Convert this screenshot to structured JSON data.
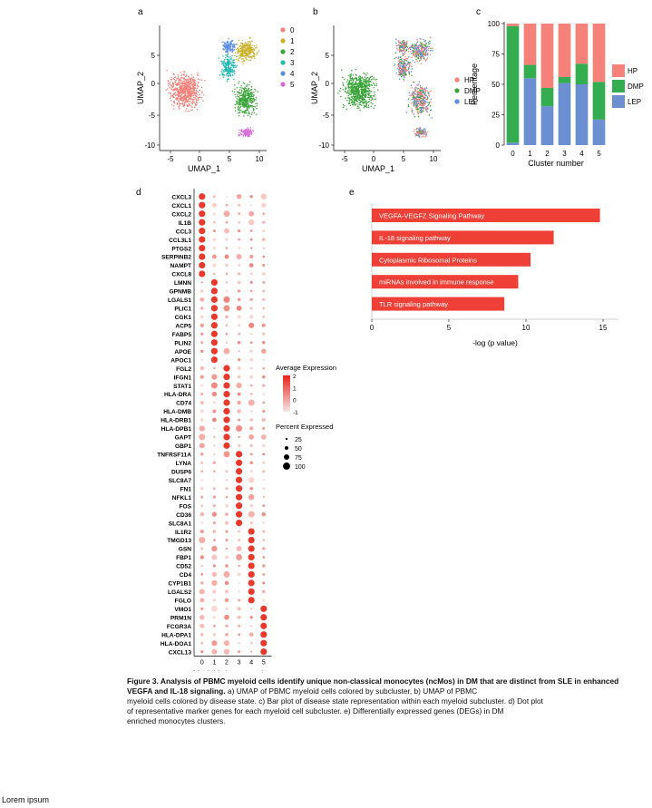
{
  "panels": {
    "a": "a",
    "b": "b",
    "c": "c",
    "d": "d",
    "e": "e"
  },
  "umap_a": {
    "xlabel": "UMAP_1",
    "ylabel": "UMAP_2",
    "xticks": [
      "-5",
      "0",
      "5",
      "10"
    ],
    "yticks": [
      "5",
      "0",
      "-5",
      "-10"
    ],
    "legend": [
      {
        "label": "0",
        "color": "#f4827a"
      },
      {
        "label": "1",
        "color": "#c9b12b"
      },
      {
        "label": "2",
        "color": "#3aa43a"
      },
      {
        "label": "3",
        "color": "#22b8b0"
      },
      {
        "label": "4",
        "color": "#5d8fe0"
      },
      {
        "label": "5",
        "color": "#d86ad8"
      }
    ]
  },
  "umap_b": {
    "xlabel": "UMAP_1",
    "ylabel": "UMAP_2",
    "xticks": [
      "-5",
      "0",
      "5",
      "10"
    ],
    "yticks": [
      "5",
      "0",
      "-5",
      "-10"
    ],
    "legend": [
      {
        "label": "HP",
        "color": "#f4827a"
      },
      {
        "label": "DMP",
        "color": "#3aa43a"
      },
      {
        "label": "LEP",
        "color": "#5d8fe0"
      }
    ]
  },
  "chart_data": [
    {
      "type": "bar",
      "panel": "c",
      "xlabel": "Cluster number",
      "ylabel": "Percentage",
      "ylim": [
        0,
        100
      ],
      "categories": [
        "0",
        "1",
        "2",
        "3",
        "4",
        "5"
      ],
      "yticks": [
        "0",
        "25",
        "50",
        "75",
        "100"
      ],
      "series": [
        {
          "name": "LEP",
          "color": "#6b8fd0",
          "values": [
            2,
            55,
            32,
            51,
            50,
            21
          ]
        },
        {
          "name": "DMP",
          "color": "#33ad4f",
          "values": [
            96,
            11,
            15,
            5,
            17,
            31
          ]
        },
        {
          "name": "HP",
          "color": "#f4827a",
          "values": [
            2,
            34,
            53,
            44,
            33,
            48
          ]
        }
      ],
      "legend": [
        {
          "label": "HP",
          "color": "#f4827a"
        },
        {
          "label": "DMP",
          "color": "#33ad4f"
        },
        {
          "label": "LEP",
          "color": "#6b8fd0"
        }
      ]
    },
    {
      "type": "bar",
      "panel": "e",
      "orientation": "horizontal",
      "xlabel": "-log (p value)",
      "xlim": [
        0,
        16
      ],
      "xticks": [
        "0",
        "5",
        "10",
        "15"
      ],
      "color": "#ee4036",
      "categories": [
        "VEGFA-VEGFZ Signaling Pathway",
        "IL-18 signaling pathway",
        "Cytoplasmic Ribosomal Proteins",
        "miRNAs involved in immune response",
        "TLR signaling pathway"
      ],
      "values": [
        14.8,
        11.8,
        10.3,
        9.5,
        8.6
      ]
    }
  ],
  "dotplot": {
    "xlabel": "Myeloid cluster number",
    "clusters": [
      "0",
      "1",
      "2",
      "3",
      "4",
      "5"
    ],
    "genes": [
      "CXCL3",
      "CXCL1",
      "CXCL2",
      "IL1B",
      "CCL3",
      "CCL3L1",
      "PTGS2",
      "SERPINB2",
      "NAMPT",
      "CXCL8",
      "LMNN",
      "GPNMB",
      "LGALS1",
      "PLIC1",
      "CGK1",
      "ACP5",
      "FABP5",
      "PLIN2",
      "APOE",
      "APOC1",
      "FGL2",
      "IFGN1",
      "STAT1",
      "HLA-DRA",
      "CD74",
      "HLA-DMB",
      "HLA-DRB1",
      "HLA-DPB1",
      "GAPT",
      "GBP1",
      "TNFRSF11A",
      "LYNA",
      "DUSP6",
      "SLC8A7",
      "FN1",
      "NFKL1",
      "FOS",
      "CD36",
      "SLC8A1",
      "IL1R2",
      "TMGD13",
      "GSN",
      "FBP1",
      "CD52",
      "CD4",
      "CYP1B1",
      "LGALS2",
      "FGLO",
      "VMO1",
      "PRM1N",
      "FCGR3A",
      "HLA-DPA1",
      "HLA-DOA1",
      "CXCL13"
    ],
    "strong_cluster": [
      0,
      0,
      0,
      0,
      0,
      0,
      0,
      0,
      0,
      0,
      1,
      1,
      1,
      1,
      1,
      1,
      1,
      1,
      1,
      1,
      2,
      2,
      2,
      2,
      2,
      2,
      2,
      2,
      2,
      2,
      3,
      3,
      3,
      3,
      3,
      3,
      3,
      3,
      3,
      4,
      4,
      4,
      4,
      4,
      4,
      4,
      4,
      4,
      5,
      5,
      5,
      5,
      5,
      5
    ],
    "legend_title_avg": "Average Expression",
    "avg_ticks": [
      "2",
      "1",
      "0",
      "-1"
    ],
    "legend_title_pct": "Percent Expressed",
    "pct_ticks": [
      "25",
      "50",
      "75",
      "100"
    ]
  },
  "caption": {
    "bold": "Figure 3. Analysis of PBMC myeloid cells identify unique non-classical monocytes (ncMos) in DM that are distinct from SLE in enhanced VEGFA and IL-18 signaling.",
    "lines": [
      " a) UMAP of PBMC myeloid cells colored by subcluster, b) UMAP of PBMC",
      "myeloid cells colored by disease state. c) Bar plot of disease state representation within each myeloid subcluster. d) Dot plot",
      "of representative marker genes for each myeloid cell subcluster. e) Differentially expressed genes (DEGs) in DM",
      "enriched monocytes clusters."
    ]
  },
  "footer": "Lorem ipsum"
}
